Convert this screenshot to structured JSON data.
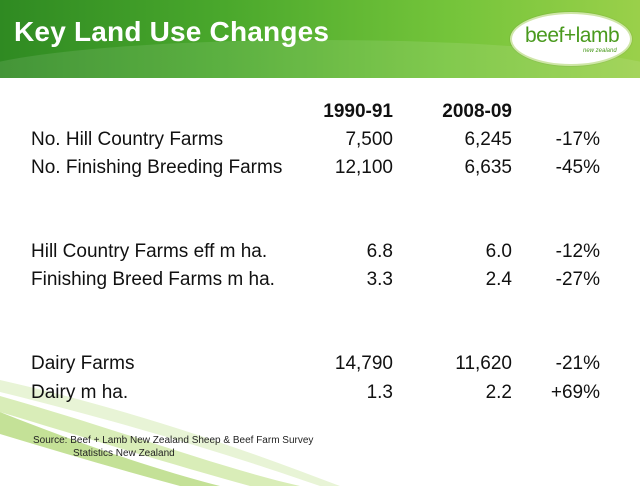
{
  "header": {
    "title": "Key Land Use Changes"
  },
  "logo": {
    "text": "beef+lamb",
    "subtext": "new zealand"
  },
  "table": {
    "columns": [
      "1990-91",
      "2008-09"
    ],
    "rows": [
      {
        "label": "No. Hill Country Farms",
        "v1": "7,500",
        "v2": "6,245",
        "change": "-17%"
      },
      {
        "label": "No. Finishing Breeding Farms",
        "v1": "12,100",
        "v2": "6,635",
        "change": "-45%"
      },
      {
        "label": "Hill Country Farms eff m ha.",
        "v1": "6.8",
        "v2": "6.0",
        "change": "-12%"
      },
      {
        "label": "Finishing Breed Farms m  ha.",
        "v1": "3.3",
        "v2": "2.4",
        "change": "-27%"
      },
      {
        "label": "Dairy Farms",
        "v1": "14,790",
        "v2": "11,620",
        "change": "-21%"
      },
      {
        "label": "Dairy m ha.",
        "v1": "1.3",
        "v2": "2.2",
        "change": "+69%"
      }
    ]
  },
  "source": {
    "line1": "Source:  Beef + Lamb New Zealand  Sheep & Beef Farm Survey",
    "line2": "Statistics New Zealand"
  },
  "colors": {
    "header_green": "#4aa82c",
    "swoosh_green": "#cfe8a6",
    "logo_green": "#4a9a1e"
  }
}
